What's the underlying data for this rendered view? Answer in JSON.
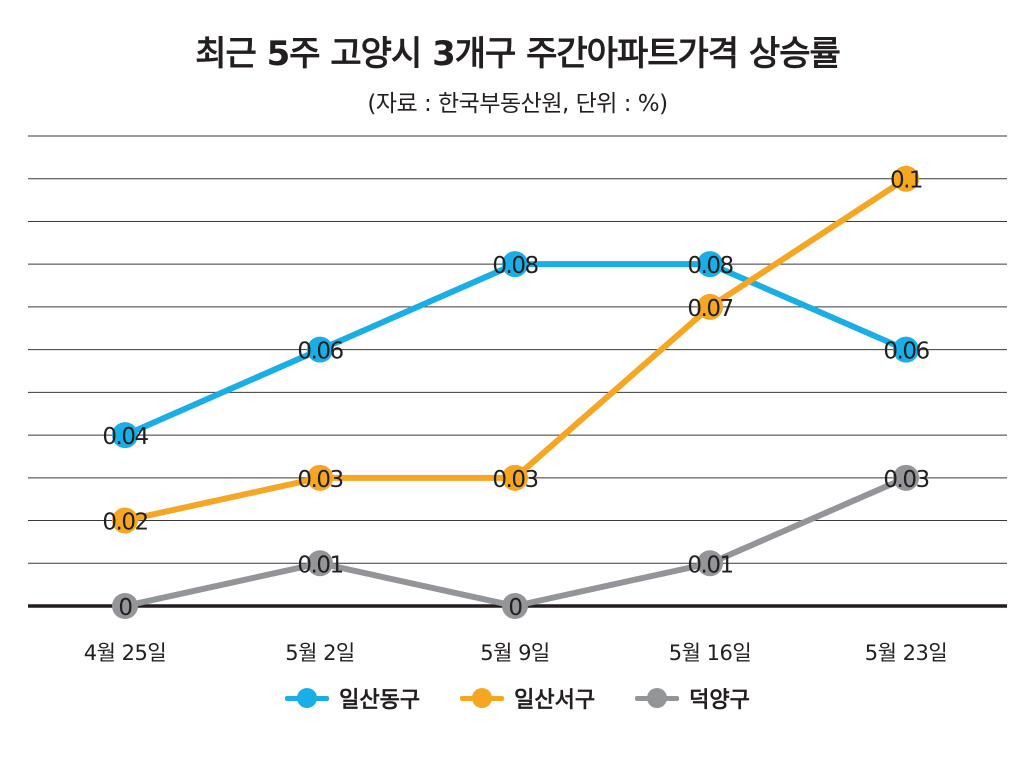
{
  "chart_data": {
    "type": "line",
    "title": "최근 5주 고양시 3개구 주간아파트가격 상승률",
    "subtitle": "(자료 : 한국부동산원, 단위 : %)",
    "categories": [
      "4월 25일",
      "5월 2일",
      "5월 9일",
      "5월 16일",
      "5월 23일"
    ],
    "ylim": [
      0,
      0.11
    ],
    "grid": true,
    "legend_position": "bottom",
    "series": [
      {
        "name": "일산동구",
        "color": "#1aaee6",
        "values": [
          0.04,
          0.06,
          0.08,
          0.08,
          0.06
        ],
        "labels": [
          "0.04",
          "0.06",
          "0.08",
          "0.08",
          "0.06"
        ]
      },
      {
        "name": "일산서구",
        "color": "#f5a623",
        "values": [
          0.02,
          0.03,
          0.03,
          0.07,
          0.1
        ],
        "labels": [
          "0.02",
          "0.03",
          "0.03",
          "0.07",
          "0.1"
        ]
      },
      {
        "name": "덕양구",
        "color": "#939598",
        "values": [
          0,
          0.01,
          0,
          0.01,
          0.03
        ],
        "labels": [
          "0",
          "0.01",
          "0",
          "0.01",
          "0.03"
        ]
      }
    ]
  }
}
